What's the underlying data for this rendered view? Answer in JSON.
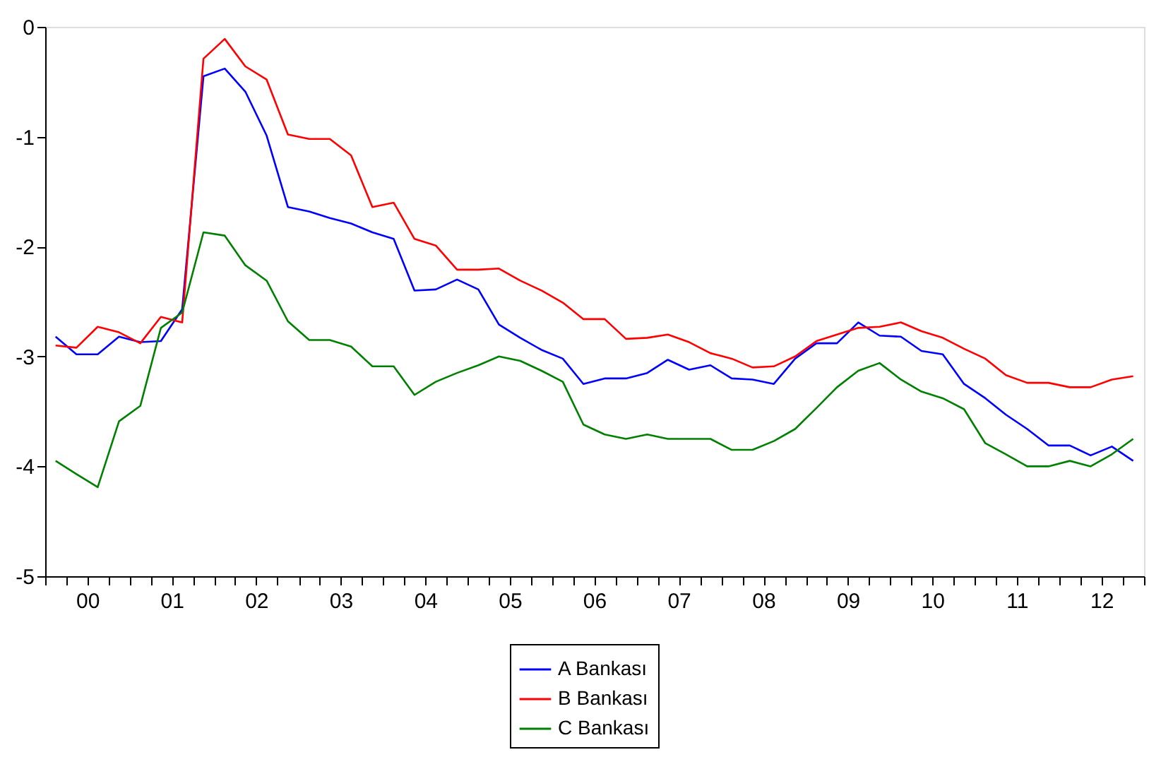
{
  "chart_data": {
    "type": "line",
    "x": [
      "2000-02-15",
      "2000-05-15",
      "2000-08-15",
      "2000-11-15",
      "2001-02-15",
      "2001-05-15",
      "2001-08-15",
      "2001-11-15",
      "2002-02-15",
      "2002-05-15",
      "2002-08-15",
      "2002-11-15",
      "2003-02-15",
      "2003-05-15",
      "2003-08-15",
      "2003-11-15",
      "2004-02-15",
      "2004-05-15",
      "2004-08-15",
      "2004-11-15",
      "2005-02-15",
      "2005-05-15",
      "2005-08-15",
      "2005-11-15",
      "2006-02-15",
      "2006-05-15",
      "2006-08-15",
      "2006-11-15",
      "2007-02-15",
      "2007-05-15",
      "2007-08-15",
      "2007-11-15",
      "2008-02-15",
      "2008-05-15",
      "2008-08-15",
      "2008-11-15",
      "2009-02-15",
      "2009-05-15",
      "2009-08-15",
      "2009-11-15",
      "2010-02-15",
      "2010-05-15",
      "2010-08-15",
      "2010-11-15",
      "2011-02-15",
      "2011-05-15",
      "2011-08-15",
      "2011-11-15",
      "2012-02-15",
      "2012-05-15",
      "2012-08-15",
      "2012-11-15"
    ],
    "series": [
      {
        "name": "A Bankası",
        "color": "#0000ff",
        "values": [
          -2.82,
          -2.98,
          -2.98,
          -2.82,
          -2.87,
          -2.86,
          -2.57,
          -0.45,
          -0.38,
          -0.59,
          -0.99,
          -1.64,
          -1.68,
          -1.74,
          -1.79,
          -1.87,
          -1.93,
          -2.4,
          -2.39,
          -2.3,
          -2.39,
          -2.71,
          -2.83,
          -2.94,
          -3.02,
          -3.25,
          -3.2,
          -3.2,
          -3.15,
          -3.03,
          -3.12,
          -3.08,
          -3.2,
          -3.21,
          -3.25,
          -3.02,
          -2.88,
          -2.88,
          -2.69,
          -2.81,
          -2.82,
          -2.95,
          -2.98,
          -3.25,
          -3.38,
          -3.53,
          -3.66,
          -3.81,
          -3.81,
          -3.9,
          -3.82,
          -3.95
        ]
      },
      {
        "name": "B Bankası",
        "color": "#ff0000",
        "values": [
          -2.9,
          -2.92,
          -2.73,
          -2.78,
          -2.88,
          -2.64,
          -2.69,
          -0.29,
          -0.11,
          -0.36,
          -0.48,
          -0.98,
          -1.02,
          -1.02,
          -1.17,
          -1.64,
          -1.6,
          -1.93,
          -1.99,
          -2.21,
          -2.21,
          -2.2,
          -2.31,
          -2.4,
          -2.51,
          -2.66,
          -2.66,
          -2.84,
          -2.83,
          -2.8,
          -2.87,
          -2.97,
          -3.02,
          -3.1,
          -3.09,
          -3.0,
          -2.86,
          -2.8,
          -2.74,
          -2.73,
          -2.69,
          -2.77,
          -2.83,
          -2.93,
          -3.02,
          -3.17,
          -3.24,
          -3.24,
          -3.28,
          -3.28,
          -3.21,
          -3.18
        ]
      },
      {
        "name": "C Bankası",
        "color": "#008000",
        "values": [
          -3.95,
          -4.07,
          -4.19,
          -3.59,
          -3.45,
          -2.74,
          -2.6,
          -1.87,
          -1.9,
          -2.17,
          -2.31,
          -2.68,
          -2.85,
          -2.85,
          -2.91,
          -3.09,
          -3.09,
          -3.35,
          -3.23,
          -3.15,
          -3.08,
          -3.0,
          -3.04,
          -3.13,
          -3.23,
          -3.62,
          -3.71,
          -3.75,
          -3.71,
          -3.75,
          -3.75,
          -3.75,
          -3.85,
          -3.85,
          -3.77,
          -3.66,
          -3.47,
          -3.28,
          -3.13,
          -3.06,
          -3.21,
          -3.32,
          -3.38,
          -3.48,
          -3.79,
          -3.89,
          -4.0,
          -4.0,
          -3.95,
          -4.0,
          -3.89,
          -3.75
        ]
      }
    ],
    "xlim": [
      "2000-01-01",
      "2013-01-01"
    ],
    "xticks": [
      {
        "value": "2000-01-01",
        "label": null
      },
      {
        "value": "2000-04-01",
        "label": null
      },
      {
        "value": "2000-07-01",
        "label": "00"
      },
      {
        "value": "2000-10-01",
        "label": null
      },
      {
        "value": "2001-01-01",
        "label": null
      },
      {
        "value": "2001-04-01",
        "label": null
      },
      {
        "value": "2001-07-01",
        "label": "01"
      },
      {
        "value": "2001-10-01",
        "label": null
      },
      {
        "value": "2002-01-01",
        "label": null
      },
      {
        "value": "2002-04-01",
        "label": null
      },
      {
        "value": "2002-07-01",
        "label": "02"
      },
      {
        "value": "2002-10-01",
        "label": null
      },
      {
        "value": "2003-01-01",
        "label": null
      },
      {
        "value": "2003-04-01",
        "label": null
      },
      {
        "value": "2003-07-01",
        "label": "03"
      },
      {
        "value": "2003-10-01",
        "label": null
      },
      {
        "value": "2004-01-01",
        "label": null
      },
      {
        "value": "2004-04-01",
        "label": null
      },
      {
        "value": "2004-07-01",
        "label": "04"
      },
      {
        "value": "2004-10-01",
        "label": null
      },
      {
        "value": "2005-01-01",
        "label": null
      },
      {
        "value": "2005-04-01",
        "label": null
      },
      {
        "value": "2005-07-01",
        "label": "05"
      },
      {
        "value": "2005-10-01",
        "label": null
      },
      {
        "value": "2006-01-01",
        "label": null
      },
      {
        "value": "2006-04-01",
        "label": null
      },
      {
        "value": "2006-07-01",
        "label": "06"
      },
      {
        "value": "2006-10-01",
        "label": null
      },
      {
        "value": "2007-01-01",
        "label": null
      },
      {
        "value": "2007-04-01",
        "label": null
      },
      {
        "value": "2007-07-01",
        "label": "07"
      },
      {
        "value": "2007-10-01",
        "label": null
      },
      {
        "value": "2008-01-01",
        "label": null
      },
      {
        "value": "2008-04-01",
        "label": null
      },
      {
        "value": "2008-07-01",
        "label": "08"
      },
      {
        "value": "2008-10-01",
        "label": null
      },
      {
        "value": "2009-01-01",
        "label": null
      },
      {
        "value": "2009-04-01",
        "label": null
      },
      {
        "value": "2009-07-01",
        "label": "09"
      },
      {
        "value": "2009-10-01",
        "label": null
      },
      {
        "value": "2010-01-01",
        "label": null
      },
      {
        "value": "2010-04-01",
        "label": null
      },
      {
        "value": "2010-07-01",
        "label": "10"
      },
      {
        "value": "2010-10-01",
        "label": null
      },
      {
        "value": "2011-01-01",
        "label": null
      },
      {
        "value": "2011-04-01",
        "label": null
      },
      {
        "value": "2011-07-01",
        "label": "11"
      },
      {
        "value": "2011-10-01",
        "label": null
      },
      {
        "value": "2012-01-01",
        "label": null
      },
      {
        "value": "2012-04-01",
        "label": null
      },
      {
        "value": "2012-07-01",
        "label": "12"
      },
      {
        "value": "2012-10-01",
        "label": null
      },
      {
        "value": "2013-01-01",
        "label": null
      }
    ],
    "ylim": [
      -5,
      0
    ],
    "yticks": [
      -5,
      -4,
      -3,
      -2,
      -1,
      0
    ],
    "grid": false,
    "legend": "bottom",
    "marker": "none",
    "line_style": "solid"
  }
}
